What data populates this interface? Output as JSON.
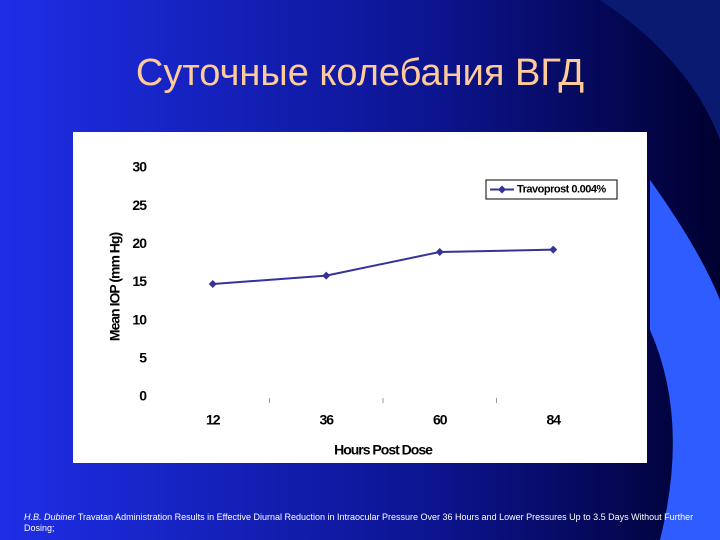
{
  "title": "Суточные колебания ВГД",
  "chart_data": {
    "type": "line",
    "categories": [
      "12",
      "36",
      "60",
      "84"
    ],
    "series": [
      {
        "name": "Travoprost 0.004%",
        "color": "#333399",
        "values": [
          14.8,
          15.9,
          19,
          19.3
        ]
      }
    ],
    "ylim": [
      0,
      30
    ],
    "yticks": [
      0,
      5,
      10,
      15,
      20,
      25,
      30
    ],
    "y_label": "Mean IOP (mm Hg)",
    "x_label": "Hours Post Dose",
    "legend": "upper right",
    "grid": false
  },
  "footnote": {
    "author": "H.B. Dubiner",
    "text": "Travatan Administration Results in Effective Diurnal Reduction in Intraocular Pressure Over 36 Hours and Lower Pressures Up to 3.5 Days Without Further Dosing;"
  }
}
